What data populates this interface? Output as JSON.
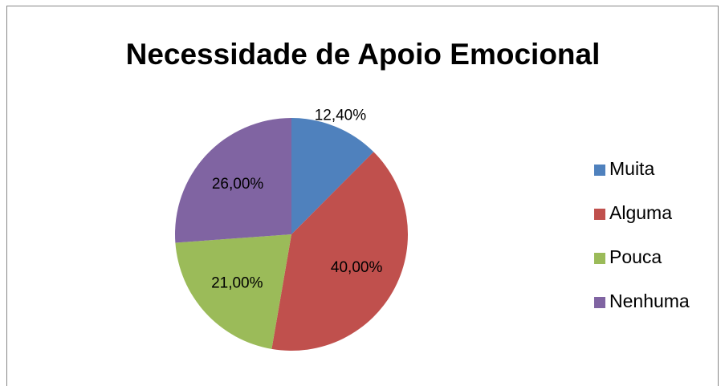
{
  "chart_data": {
    "type": "pie",
    "title": "Necessidade de Apoio Emocional",
    "categories": [
      "Muita",
      "Alguma",
      "Pouca",
      "Nenhuma"
    ],
    "values": [
      12.4,
      40,
      21,
      26
    ],
    "value_labels": [
      "12,40%",
      "40,00%",
      "21,00%",
      "26,00%"
    ],
    "colors": [
      "#4f81bd",
      "#c0504d",
      "#9bbb59",
      "#8064a2"
    ],
    "legend": "right"
  }
}
